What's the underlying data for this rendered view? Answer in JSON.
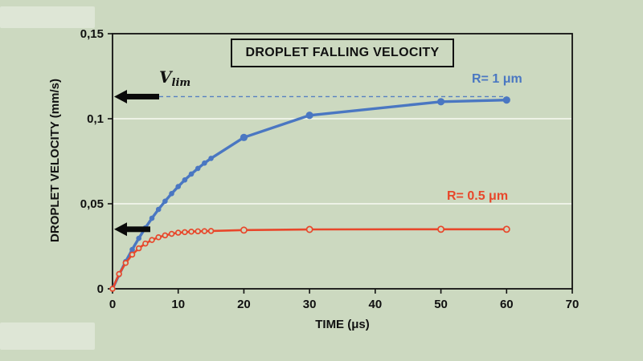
{
  "page": {
    "background_color": "#ccd9c0"
  },
  "chart": {
    "title": "DROPLET FALLING VELOCITY",
    "x_axis_title": "TIME (μs)",
    "y_axis_title": "DROPLET VELOCITY (mm/s)",
    "vlim_label": {
      "symbol": "V",
      "subscript": "lim"
    },
    "colors": {
      "blue_series": "#4a77c2",
      "red_series": "#e8472b",
      "axis": "#111111",
      "gridline": "#f2f6ec",
      "arrow": "#0a0a0a"
    }
  },
  "chart_data": {
    "type": "line",
    "title": "DROPLET FALLING VELOCITY",
    "xlabel": "TIME (μs)",
    "ylabel": "DROPLET VELOCITY (mm/s)",
    "xlim": [
      0,
      70
    ],
    "ylim": [
      0,
      0.15
    ],
    "x_ticks": {
      "values": [
        0,
        10,
        20,
        30,
        40,
        50,
        60,
        70
      ],
      "labels": [
        "0",
        "10",
        "20",
        "30",
        "40",
        "50",
        "60",
        "70"
      ]
    },
    "y_ticks": {
      "values": [
        0,
        0.05,
        0.1,
        0.15
      ],
      "labels": [
        "0",
        "0,05",
        "0,1",
        "0,15"
      ]
    },
    "gridlines_y": [
      0.05,
      0.1
    ],
    "legend_position": "inline-labels",
    "grid": true,
    "series": [
      {
        "name": "R= 1 μm",
        "color": "#4a77c2",
        "marker": "filled",
        "v_lim": 0.113,
        "vlim_dashed_line": true,
        "x": [
          0,
          1,
          2,
          3,
          4,
          5,
          6,
          7,
          8,
          9,
          10,
          11,
          12,
          13,
          14,
          15,
          20,
          30,
          50,
          60
        ],
        "y": [
          0,
          0.0083,
          0.016,
          0.0231,
          0.0297,
          0.0358,
          0.0415,
          0.0467,
          0.0515,
          0.056,
          0.0601,
          0.064,
          0.0675,
          0.0708,
          0.0739,
          0.0767,
          0.089,
          0.102,
          0.11,
          0.111
        ]
      },
      {
        "name": "R= 0.5 μm",
        "color": "#e8472b",
        "marker": "open",
        "v_lim": 0.035,
        "vlim_dashed_line": false,
        "x": [
          0,
          1,
          2,
          3,
          4,
          5,
          6,
          7,
          8,
          9,
          10,
          11,
          12,
          13,
          14,
          15,
          20,
          30,
          50,
          60
        ],
        "y": [
          0,
          0.0087,
          0.0152,
          0.0201,
          0.0238,
          0.0266,
          0.0287,
          0.0303,
          0.0314,
          0.0323,
          0.033,
          0.0333,
          0.0336,
          0.0338,
          0.0339,
          0.034,
          0.0345,
          0.0349,
          0.035,
          0.035
        ]
      }
    ],
    "annotations": [
      {
        "type": "arrow-left",
        "at_y": 0.113,
        "label": "V_lim"
      },
      {
        "type": "arrow-left",
        "at_y": 0.035,
        "label": ""
      }
    ]
  }
}
